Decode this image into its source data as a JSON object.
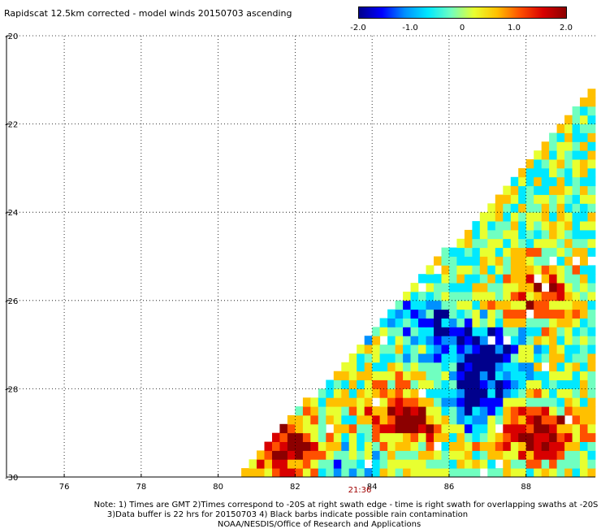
{
  "title": "Rapidscat 12.5km corrected - model winds 20150703 ascending",
  "colorbar": {
    "ticks": [
      "-2.0",
      "-1.0",
      "0",
      "1.0",
      "2.0"
    ],
    "colors": [
      "#00008c",
      "#0000ff",
      "#0090ff",
      "#00e8ff",
      "#70ffc0",
      "#e8ff30",
      "#ffc000",
      "#ff5000",
      "#d80000",
      "#8c0000"
    ]
  },
  "chart_data": {
    "type": "heatmap",
    "title": "Rapidscat 12.5km corrected - model winds 20150703 ascending",
    "xlabel": "",
    "ylabel": "",
    "xlim": [
      74.5,
      89.8
    ],
    "ylim": [
      -30,
      -20
    ],
    "x_ticks": [
      "76",
      "78",
      "80",
      "82",
      "84",
      "86",
      "88"
    ],
    "y_ticks": [
      "-20",
      "-22",
      "-24",
      "-26",
      "-28",
      "-30"
    ],
    "colorbar_range": [
      -2.0,
      2.0
    ],
    "grid": true,
    "swath_time_label": "21:36",
    "features": [
      {
        "desc": "strong positive",
        "lon": 85.0,
        "lat": -28.6,
        "value": 2.0
      },
      {
        "desc": "strong positive",
        "lon": 88.2,
        "lat": -29.0,
        "value": 2.0
      },
      {
        "desc": "strong positive",
        "lon": 81.9,
        "lat": -29.4,
        "value": 2.0
      },
      {
        "desc": "strong negative",
        "lon": 86.9,
        "lat": -27.2,
        "value": -2.0
      },
      {
        "desc": "strong negative",
        "lon": 86.6,
        "lat": -28.3,
        "value": -1.8
      },
      {
        "desc": "negative",
        "lon": 85.4,
        "lat": -26.4,
        "value": -1.2
      },
      {
        "desc": "positive",
        "lon": 88.4,
        "lat": -25.9,
        "value": 1.2
      },
      {
        "desc": "negative",
        "lon": 83.3,
        "lat": -29.8,
        "value": -0.9
      }
    ]
  },
  "notes": {
    "line1": "Note: 1) Times are GMT 2)Times correspond to -20S at right swath edge - time is right swath for overlapping swaths at -20S",
    "line2": "3)Data buffer is 22 hrs for 20150703 4) Black barbs indicate possible rain contamination",
    "line3": "NOAA/NESDIS/Office of Research and Applications"
  }
}
